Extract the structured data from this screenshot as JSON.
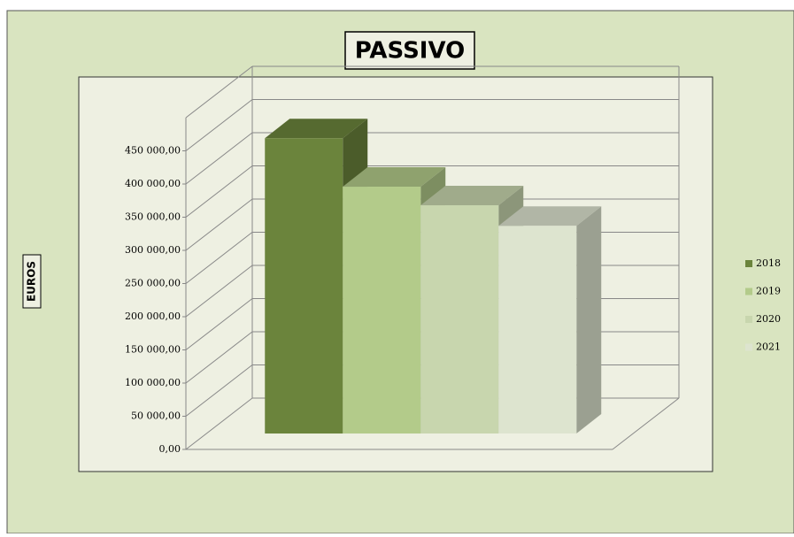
{
  "chart_data": {
    "type": "bar3d",
    "title": "PASSIVO",
    "y_label": "EUROS",
    "categories": [
      "2018",
      "2019",
      "2020",
      "2021"
    ],
    "values": [
      445000,
      372000,
      344000,
      313000
    ],
    "colors": [
      "#6b843c",
      "#b3cb8a",
      "#c8d6ae",
      "#dde4cf"
    ],
    "ylim": [
      0,
      500000
    ],
    "yticks": [
      {
        "value": 0,
        "label": "0,00"
      },
      {
        "value": 50000,
        "label": "50 000,00"
      },
      {
        "value": 100000,
        "label": "100 000,00"
      },
      {
        "value": 150000,
        "label": "150 000,00"
      },
      {
        "value": 200000,
        "label": "200 000,00"
      },
      {
        "value": 250000,
        "label": "250 000,00"
      },
      {
        "value": 300000,
        "label": "300 000,00"
      },
      {
        "value": 350000,
        "label": "350 000,00"
      },
      {
        "value": 400000,
        "label": "400 000,00"
      },
      {
        "value": 450000,
        "label": "450 000,00"
      }
    ],
    "grid": true,
    "legend": "right"
  }
}
